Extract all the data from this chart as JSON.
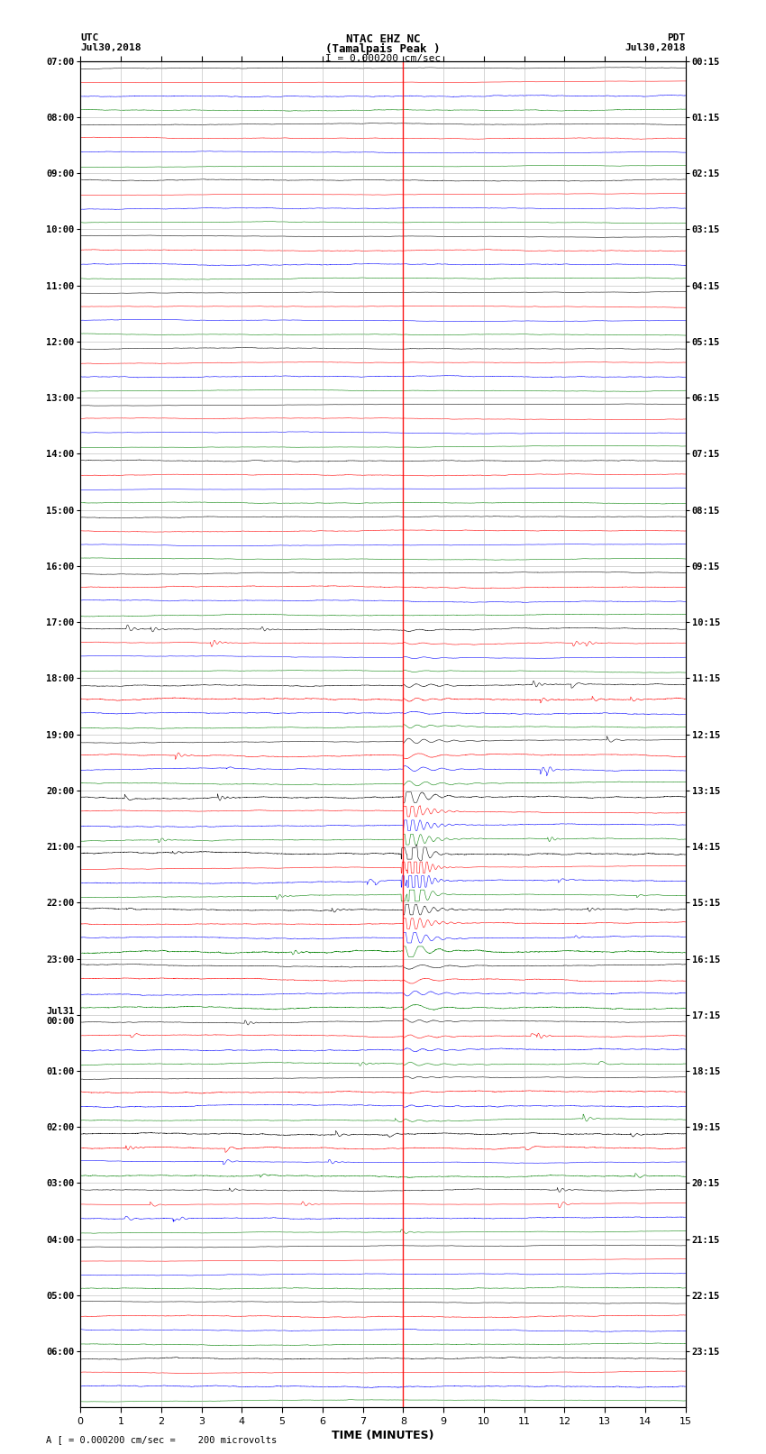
{
  "title_line1": "NTAC EHZ NC",
  "title_line2": "(Tamalpais Peak )",
  "title_line3": "I = 0.000200 cm/sec",
  "left_header_line1": "UTC",
  "left_header_line2": "Jul30,2018",
  "right_header_line1": "PDT",
  "right_header_line2": "Jul30,2018",
  "xlabel": "TIME (MINUTES)",
  "footer": "A [ = 0.000200 cm/sec =    200 microvolts",
  "utc_labels": [
    "07:00",
    "08:00",
    "09:00",
    "10:00",
    "11:00",
    "12:00",
    "13:00",
    "14:00",
    "15:00",
    "16:00",
    "17:00",
    "18:00",
    "19:00",
    "20:00",
    "21:00",
    "22:00",
    "23:00",
    "Jul31\n00:00",
    "01:00",
    "02:00",
    "03:00",
    "04:00",
    "05:00",
    "06:00"
  ],
  "pdt_labels": [
    "00:15",
    "01:15",
    "02:15",
    "03:15",
    "04:15",
    "05:15",
    "06:15",
    "07:15",
    "08:15",
    "09:15",
    "10:15",
    "11:15",
    "12:15",
    "13:15",
    "14:15",
    "15:15",
    "16:15",
    "17:15",
    "18:15",
    "19:15",
    "20:15",
    "21:15",
    "22:15",
    "23:15"
  ],
  "num_rows": 24,
  "traces_per_row": 4,
  "colors": [
    "black",
    "red",
    "blue",
    "green"
  ],
  "minutes_per_row": 15,
  "background_color": "white",
  "grid_color": "#aaaaaa",
  "event_row": 14,
  "event_minute": 8.0,
  "noise_seed": 42
}
